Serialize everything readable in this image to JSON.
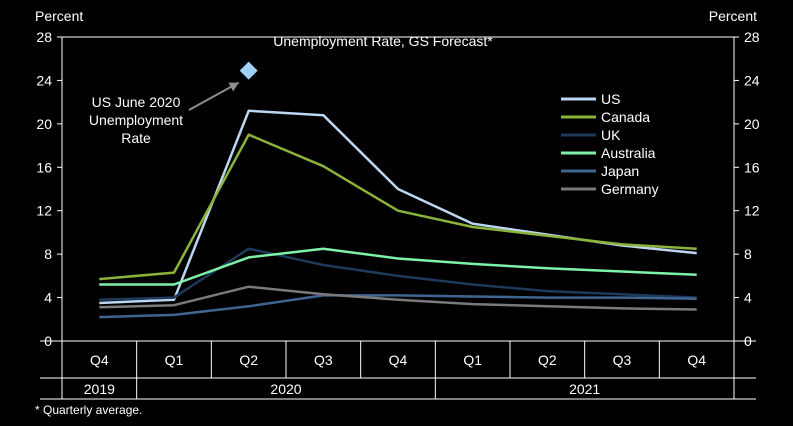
{
  "chart_data": {
    "type": "line",
    "title": "Unemployment Rate, GS Forecast*",
    "left_axis_label": "Percent",
    "right_axis_label": "Percent",
    "footnote": "* Quarterly average.",
    "quarters": [
      "Q4",
      "Q1",
      "Q2",
      "Q3",
      "Q4",
      "Q1",
      "Q2",
      "Q3",
      "Q4"
    ],
    "years": [
      {
        "label": "2019",
        "start": 0,
        "end": 0
      },
      {
        "label": "2020",
        "start": 1,
        "end": 4
      },
      {
        "label": "2021",
        "start": 5,
        "end": 8
      }
    ],
    "ylim": [
      0,
      28
    ],
    "yticks": [
      0,
      4,
      8,
      12,
      16,
      20,
      24,
      28
    ],
    "series": [
      {
        "name": "US",
        "color": "#bcd7f2",
        "values": [
          3.5,
          3.8,
          21.2,
          20.8,
          14.0,
          10.8,
          9.8,
          8.8,
          8.1
        ]
      },
      {
        "name": "Canada",
        "color": "#8bb33a",
        "values": [
          5.7,
          6.3,
          19.0,
          16.1,
          12.0,
          10.5,
          9.7,
          8.9,
          8.5
        ]
      },
      {
        "name": "UK",
        "color": "#1d3a5a",
        "values": [
          3.8,
          4.0,
          8.5,
          7.0,
          6.0,
          5.2,
          4.6,
          4.3,
          4.0
        ]
      },
      {
        "name": "Australia",
        "color": "#7ef2a8",
        "values": [
          5.2,
          5.2,
          7.7,
          8.5,
          7.6,
          7.1,
          6.7,
          6.4,
          6.1
        ]
      },
      {
        "name": "Japan",
        "color": "#3f6691",
        "values": [
          2.2,
          2.4,
          3.2,
          4.2,
          4.2,
          4.1,
          4.0,
          4.0,
          3.9
        ]
      },
      {
        "name": "Germany",
        "color": "#7a7a7a",
        "values": [
          3.1,
          3.3,
          5.0,
          4.3,
          3.8,
          3.4,
          3.2,
          3.0,
          2.9
        ]
      }
    ],
    "annotation": {
      "text_lines": [
        "US June 2020",
        "Unemployment",
        "Rate"
      ],
      "value": 24.9,
      "quarter_index": 2,
      "color": "#9fd0f6"
    }
  }
}
